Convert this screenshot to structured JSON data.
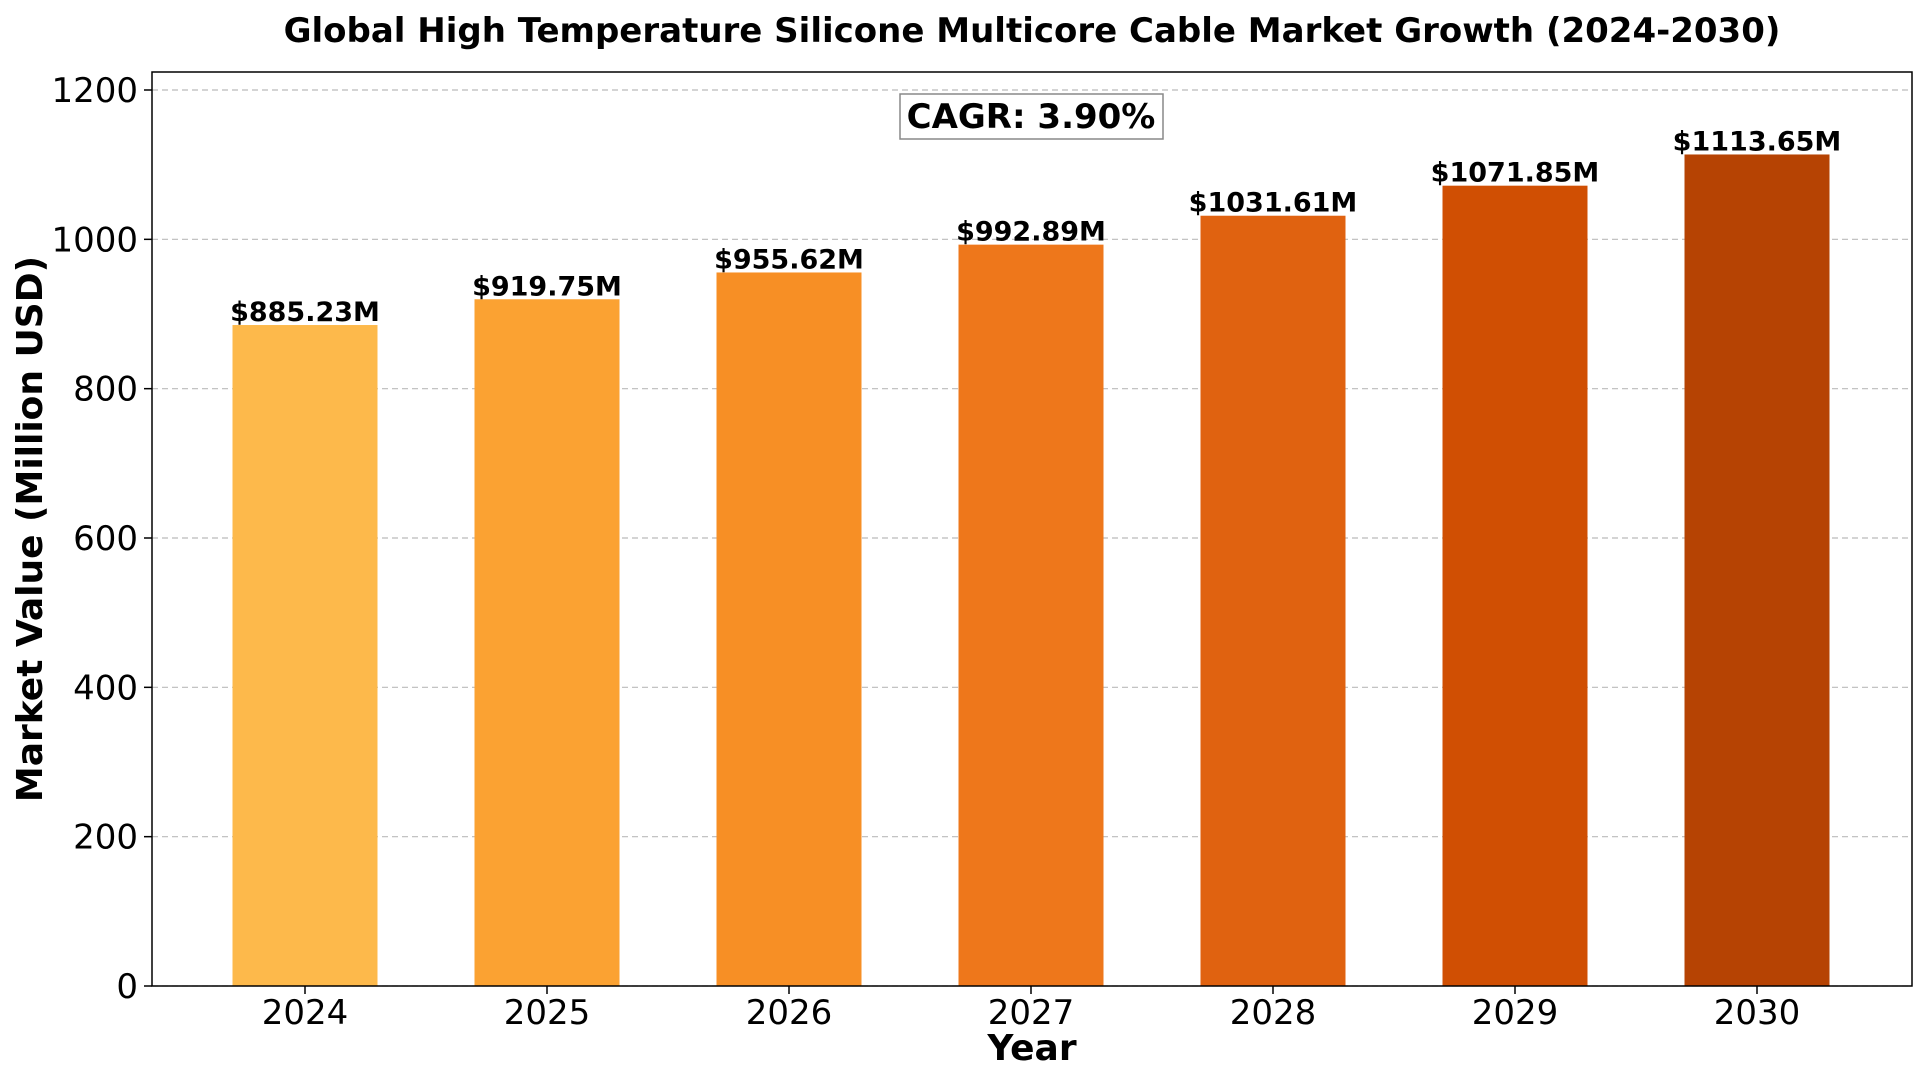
{
  "chart_data": {
    "type": "bar",
    "title": "Global High Temperature Silicone Multicore Cable Market Growth (2024-2030)",
    "xlabel": "Year",
    "ylabel": "Market Value (Million USD)",
    "categories": [
      "2024",
      "2025",
      "2026",
      "2027",
      "2028",
      "2029",
      "2030"
    ],
    "values": [
      885.23,
      919.75,
      955.62,
      992.89,
      1031.61,
      1071.85,
      1113.65
    ],
    "data_labels": [
      "$885.23M",
      "$919.75M",
      "$955.62M",
      "$992.89M",
      "$1031.61M",
      "$1071.85M",
      "$1113.65M"
    ],
    "bar_colors": [
      "#FDB94B",
      "#FBA232",
      "#F78F25",
      "#EE771B",
      "#E06210",
      "#D04F03",
      "#B64303"
    ],
    "ylim": [
      0,
      1200
    ],
    "yticks": [
      0,
      200,
      400,
      600,
      800,
      1000,
      1200
    ],
    "ytick_labels": [
      "0",
      "200",
      "400",
      "600",
      "800",
      "1000",
      "1200"
    ],
    "grid": true,
    "annotation": "CAGR: 3.90%"
  }
}
